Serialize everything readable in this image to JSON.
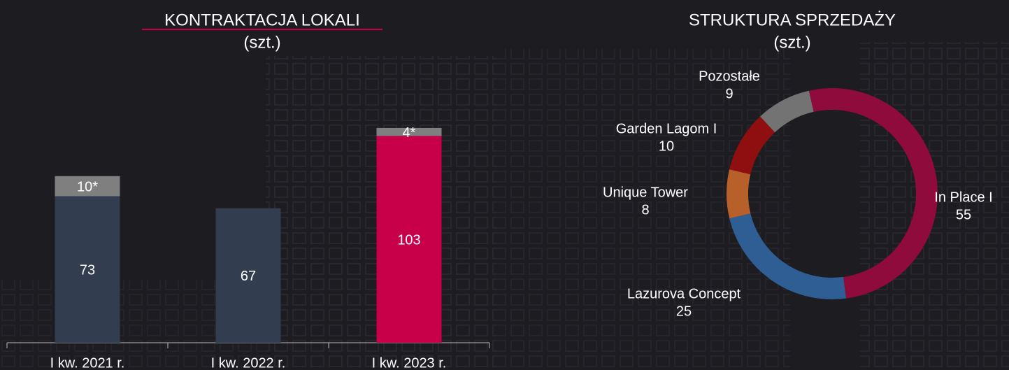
{
  "chart_data": [
    {
      "type": "bar",
      "title": "KONTRAKTACJA LOKALI",
      "subtitle": "(szt.)",
      "categories": [
        "I kw. 2021 r.",
        "I kw. 2022 r.",
        "I kw. 2023 r."
      ],
      "series": [
        {
          "colors": [
            "#333d50",
            "#333d50",
            "#c8004a"
          ],
          "values": [
            73,
            67,
            103
          ]
        },
        {
          "color": "#7f7f7f",
          "values": [
            10,
            null,
            4
          ],
          "value_labels": [
            "10*",
            null,
            "4*"
          ]
        }
      ]
    },
    {
      "type": "pie",
      "title": "STRUKTURA SPRZEDAŻY",
      "subtitle": "(szt.)",
      "categories": [
        "In Place I",
        "Lazurova Concept",
        "Unique Tower",
        "Garden Lagom I",
        "Pozostałe"
      ],
      "values": [
        55,
        25,
        8,
        10,
        9
      ],
      "colors": [
        "#8e0b3c",
        "#2e5e94",
        "#b8602a",
        "#8f0f10",
        "#737373"
      ]
    }
  ]
}
